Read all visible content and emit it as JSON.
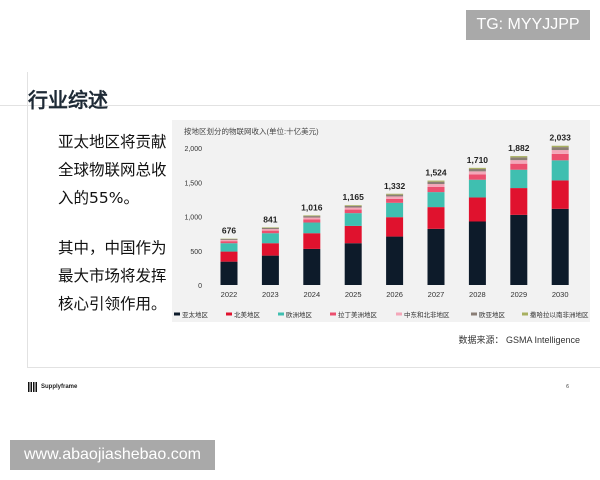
{
  "watermarks": {
    "top": "TG: MYYJJPP",
    "bottom": "www.abaojiashebao.com"
  },
  "slide": {
    "title": "行业综述",
    "paragraph1": "亚太地区将贡献全球物联网总收入的55%。",
    "paragraph2": "其中，中国作为最大市场将发挥核心引领作用。",
    "source": "数据来源： GSMA Intelligence",
    "logo_text": "Supplyframe",
    "page_number": "6"
  },
  "chart_data": {
    "type": "bar",
    "stacked": true,
    "title": "按地区划分的物联网收入(单位:十亿美元)",
    "xlabel": "",
    "ylabel": "",
    "ylim": [
      0,
      2000
    ],
    "yticks": [
      "0",
      "500",
      "1,000",
      "1,500",
      "2,000"
    ],
    "ytick_values": [
      0,
      500,
      1000,
      1500,
      2000
    ],
    "categories": [
      "2022",
      "2023",
      "2024",
      "2025",
      "2026",
      "2027",
      "2028",
      "2029",
      "2030"
    ],
    "totals": [
      "676",
      "841",
      "1,016",
      "1,165",
      "1,332",
      "1,524",
      "1,710",
      "1,882",
      "2,033"
    ],
    "total_values": [
      676,
      841,
      1016,
      1165,
      1332,
      1524,
      1710,
      1882,
      2033
    ],
    "legend_position": "bottom",
    "series": [
      {
        "name": "亚太地区",
        "color": "#0d1b2a",
        "values": [
          341,
          429,
          527,
          610,
          707,
          820,
          927,
          1024,
          1112
        ]
      },
      {
        "name": "北美地区",
        "color": "#e0122e",
        "values": [
          147,
          181,
          229,
          253,
          283,
          317,
          351,
          391,
          415
        ]
      },
      {
        "name": "欧洲地区",
        "color": "#3fbfb0",
        "values": [
          122,
          146,
          156,
          186,
          210,
          219,
          259,
          268,
          293
        ]
      },
      {
        "name": "拉丁美洲地区",
        "color": "#ec4f6e",
        "values": [
          30,
          38,
          46,
          52,
          58,
          75,
          77,
          88,
          94
        ]
      },
      {
        "name": "中东和北非地区",
        "color": "#f4a7b9",
        "values": [
          18,
          22,
          27,
          30,
          35,
          43,
          45,
          52,
          56
        ]
      },
      {
        "name": "欧亚地区",
        "color": "#8a7e76",
        "values": [
          13,
          17,
          21,
          23,
          26,
          34,
          35,
          40,
          43
        ]
      },
      {
        "name": "撒哈拉以南非洲地区",
        "color": "#a8b060",
        "values": [
          5,
          8,
          10,
          11,
          13,
          16,
          16,
          19,
          20
        ]
      }
    ]
  }
}
